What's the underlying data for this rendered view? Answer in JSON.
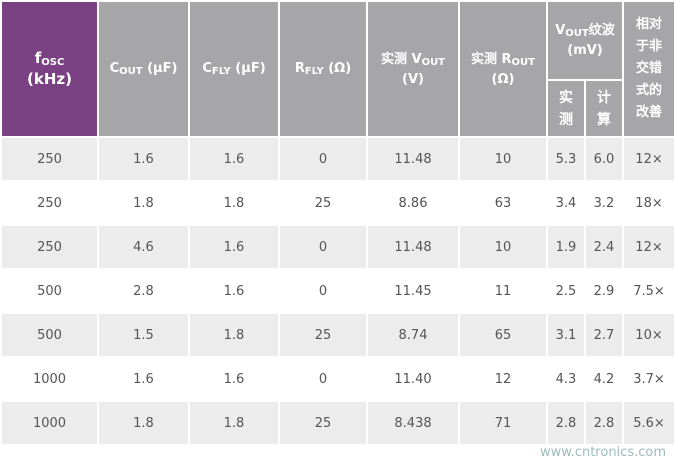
{
  "table": {
    "header": [
      {
        "pre": "f",
        "sub": "OSC",
        "post": "(kHz)"
      },
      {
        "pre": "C",
        "sub": "OUT",
        "post": " (µF)"
      },
      {
        "pre": "C",
        "sub": "FLY",
        "post": " (µF)"
      },
      {
        "pre": "R",
        "sub": "FLY",
        "post": " (Ω)"
      },
      {
        "pre": "实测 V",
        "sub": "OUT",
        "post": "(V)"
      },
      {
        "pre": "实测 R",
        "sub": "OUT",
        "post": "(Ω)"
      },
      {
        "pre": "V",
        "sub": "OUT",
        "post": "纹波 (mV)"
      },
      {
        "pre": "相对于非交错式的改善"
      }
    ],
    "subheader": [
      "实测",
      "计算"
    ],
    "rows": [
      [
        "250",
        "1.6",
        "1.6",
        "0",
        "11.48",
        "10",
        "5.3",
        "6.0",
        "12×"
      ],
      [
        "250",
        "1.8",
        "1.8",
        "25",
        "8.86",
        "63",
        "3.4",
        "3.2",
        "18×"
      ],
      [
        "250",
        "4.6",
        "1.6",
        "0",
        "11.48",
        "10",
        "1.9",
        "2.4",
        "12×"
      ],
      [
        "500",
        "2.8",
        "1.6",
        "0",
        "11.45",
        "11",
        "2.5",
        "2.9",
        "7.5×"
      ],
      [
        "500",
        "1.5",
        "1.8",
        "25",
        "8.74",
        "65",
        "3.1",
        "2.7",
        "10×"
      ],
      [
        "1000",
        "1.6",
        "1.6",
        "0",
        "11.40",
        "12",
        "4.3",
        "4.2",
        "3.7×"
      ],
      [
        "1000",
        "1.8",
        "1.8",
        "25",
        "8.438",
        "71",
        "2.8",
        "2.8",
        "5.6×"
      ]
    ]
  },
  "watermark": "www.cntronics.com"
}
